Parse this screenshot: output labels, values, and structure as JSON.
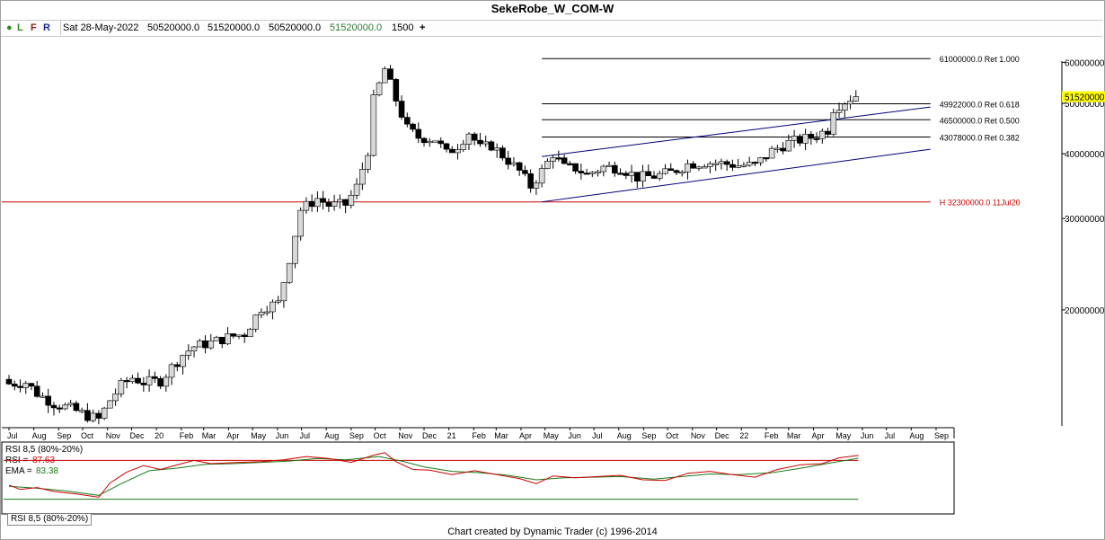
{
  "title": "SekeRobe_W_COM-W",
  "toolbar": {
    "dot": "●",
    "l": "L",
    "f": "F",
    "r": "R",
    "date": "Sat 28-May-2022",
    "open": "50520000.0",
    "high": "51520000.0",
    "low": "50520000.0",
    "close": "51520000.0",
    "volume": "1500",
    "plus": "+"
  },
  "colors": {
    "dot": "#2e8b22",
    "l": "#2e8b22",
    "f": "#8b1a1a",
    "r": "#1a2a8b",
    "close": "#2e7d32",
    "price_highlight": "#ffff00",
    "support_line": "#cc0000",
    "channel": "#00007a",
    "rsi_line": "#cc0000",
    "ema_line": "#1a7a1a"
  },
  "chart_data": [
    {
      "type": "candlestick",
      "title": "SekeRobe_W_COM-W",
      "y_scale": "log",
      "ylim": [
        12000000,
        68000000
      ],
      "y_ticks": [
        {
          "value": 60000000,
          "label": "60000000."
        },
        {
          "value": 50000000,
          "label": "50000000."
        },
        {
          "value": 40000000,
          "label": "40000000."
        },
        {
          "value": 30000000,
          "label": "30000000."
        },
        {
          "value": 20000000,
          "label": "20000000."
        }
      ],
      "x_ticks": [
        {
          "label": "Jul",
          "date": "2020-07-01"
        },
        {
          "label": "Aug",
          "date": "2020-08-01"
        },
        {
          "label": "Sep",
          "date": "2020-09-01"
        },
        {
          "label": "Oct",
          "date": "2020-10-01"
        },
        {
          "label": "Nov",
          "date": "2020-11-01"
        },
        {
          "label": "Dec",
          "date": "2020-12-01"
        },
        {
          "label": "20",
          "date": "2021-01-01"
        },
        {
          "label": "Feb",
          "date": "2021-02-01"
        },
        {
          "label": "Mar",
          "date": "2021-03-01"
        },
        {
          "label": "Apr",
          "date": "2021-04-01"
        },
        {
          "label": "May",
          "date": "2021-05-01"
        },
        {
          "label": "Jun",
          "date": "2021-06-01"
        },
        {
          "label": "Jul",
          "date": "2021-07-01"
        },
        {
          "label": "Aug",
          "date": "2021-08-01"
        },
        {
          "label": "Sep",
          "date": "2021-09-01"
        },
        {
          "label": "Oct",
          "date": "2021-10-01"
        },
        {
          "label": "Nov",
          "date": "2021-11-01"
        },
        {
          "label": "Dec",
          "date": "2021-12-01"
        },
        {
          "label": "21",
          "date": "2022-01-01"
        },
        {
          "label": "Feb",
          "date": "2022-02-01"
        },
        {
          "label": "Mar",
          "date": "2022-03-01"
        },
        {
          "label": "Apr",
          "date": "2022-04-01"
        },
        {
          "label": "May",
          "date": "2022-05-01"
        },
        {
          "label": "Jun",
          "date": "2022-06-01"
        },
        {
          "label": "Jul",
          "date": "2022-07-01"
        },
        {
          "label": "Aug",
          "date": "2022-08-01"
        },
        {
          "label": "Sep",
          "date": "2022-09-01"
        },
        {
          "label": "Oct",
          "date": "2022-10-01"
        },
        {
          "label": "Nov",
          "date": "2022-11-01"
        },
        {
          "label": "Dec",
          "date": "2022-12-01"
        },
        {
          "label": "22",
          "date": "2023-01-01"
        },
        {
          "label": "Feb",
          "date": "2023-02-01"
        },
        {
          "label": "Mar",
          "date": "2023-03-01"
        },
        {
          "label": "Apr",
          "date": "2023-04-01"
        },
        {
          "label": "May",
          "date": "2023-05-01"
        },
        {
          "label": "Jun",
          "date": "2023-06-01"
        },
        {
          "label": "Jul",
          "date": "2023-07-01"
        },
        {
          "label": "Aug",
          "date": "2023-08-01"
        },
        {
          "label": "Sep",
          "date": "2023-09-01"
        }
      ],
      "price_path": [
        [
          "2020-07-01",
          14700000
        ],
        [
          "2020-07-08",
          14400000
        ],
        [
          "2020-07-29",
          14500000
        ],
        [
          "2020-08-12",
          13800000
        ],
        [
          "2020-09-02",
          13200000
        ],
        [
          "2020-09-23",
          12900000
        ],
        [
          "2020-10-14",
          12500000
        ],
        [
          "2020-10-28",
          12300000
        ],
        [
          "2020-11-11",
          13400000
        ],
        [
          "2020-11-25",
          14300000
        ],
        [
          "2020-12-09",
          14800000
        ],
        [
          "2020-12-23",
          14500000
        ],
        [
          "2021-01-13",
          14600000
        ],
        [
          "2021-01-27",
          15500000
        ],
        [
          "2021-02-10",
          16400000
        ],
        [
          "2021-02-24",
          17000000
        ],
        [
          "2021-03-17",
          17300000
        ],
        [
          "2021-04-07",
          17700000
        ],
        [
          "2021-04-28",
          18000000
        ],
        [
          "2021-05-19",
          20200000
        ],
        [
          "2021-06-09",
          20600000
        ],
        [
          "2021-06-23",
          25100000
        ],
        [
          "2021-06-30",
          28000000
        ],
        [
          "2021-07-07",
          31200000
        ],
        [
          "2021-07-28",
          32800000
        ],
        [
          "2021-08-11",
          31800000
        ],
        [
          "2021-09-01",
          31900000
        ],
        [
          "2021-09-15",
          34500000
        ],
        [
          "2021-09-29",
          40600000
        ],
        [
          "2021-10-06",
          50700000
        ],
        [
          "2021-10-20",
          58200000
        ],
        [
          "2021-11-03",
          50800000
        ],
        [
          "2021-11-17",
          44700000
        ],
        [
          "2021-12-01",
          43000000
        ],
        [
          "2021-12-22",
          42700000
        ],
        [
          "2022-01-05",
          40000000
        ],
        [
          "2022-01-19",
          41500000
        ],
        [
          "2022-02-02",
          44000000
        ],
        [
          "2022-02-16",
          41000000
        ],
        [
          "2022-03-02",
          41500000
        ],
        [
          "2022-03-23",
          38800000
        ],
        [
          "2022-04-06",
          37000000
        ],
        [
          "2022-04-20",
          34600000
        ],
        [
          "2022-05-04",
          37000000
        ],
        [
          "2022-05-18",
          40000000
        ],
        [
          "2022-06-01",
          37600000
        ],
        [
          "2022-06-15",
          37500000
        ],
        [
          "2022-06-29",
          36500000
        ],
        [
          "2022-07-20",
          37700000
        ],
        [
          "2022-08-10",
          37600000
        ],
        [
          "2022-08-31",
          36000000
        ],
        [
          "2022-09-21",
          36200000
        ],
        [
          "2022-10-12",
          36800000
        ],
        [
          "2022-11-02",
          38200000
        ],
        [
          "2022-11-23",
          38500000
        ],
        [
          "2022-12-14",
          38300000
        ],
        [
          "2023-01-04",
          38000000
        ],
        [
          "2023-01-25",
          38000000
        ],
        [
          "2023-02-15",
          40500000
        ],
        [
          "2023-03-08",
          42000000
        ],
        [
          "2023-04-05",
          43000000
        ],
        [
          "2023-04-26",
          44500000
        ],
        [
          "2023-05-03",
          49000000
        ],
        [
          "2023-05-17",
          50500000
        ],
        [
          "2023-05-27",
          51520000
        ]
      ],
      "horizontal_levels": [
        {
          "price": 61000000,
          "label": "61000000.0 Ret 1.000",
          "from": "2022-04-27",
          "to": "2023-08-25"
        },
        {
          "price": 49922000,
          "label": "49922000.0 Ret 0.618",
          "from": "2022-04-27",
          "to": "2023-08-25"
        },
        {
          "price": 46500000,
          "label": "46500000.0 Ret 0.500",
          "from": "2022-04-27",
          "to": "2023-08-25"
        },
        {
          "price": 43078000,
          "label": "43078000.0 Ret 0.382",
          "from": "2022-04-27",
          "to": "2023-08-25"
        },
        {
          "price": 32300000,
          "label": "H 32300000.0 11Jul20",
          "from": "2020-07-01",
          "to": "2023-08-25"
        }
      ],
      "trend_lines": [
        {
          "from": [
            "2022-04-27",
            32300000
          ],
          "to": [
            "2023-08-25",
            40800000
          ]
        },
        {
          "from": [
            "2022-04-27",
            39500000
          ],
          "to": [
            "2023-08-25",
            49200000
          ]
        }
      ],
      "last_price_label": "51520000."
    },
    {
      "type": "line",
      "title": "RSI 8,5 (80%-20%)",
      "ylim": [
        0,
        100
      ],
      "levels": [
        80,
        20
      ],
      "readouts": [
        {
          "label": "RSI =",
          "value": "87.63"
        },
        {
          "label": "EMA =",
          "value": "83.38"
        }
      ],
      "rsi_path": [
        [
          "2020-07-01",
          42
        ],
        [
          "2020-07-15",
          35
        ],
        [
          "2020-08-05",
          38
        ],
        [
          "2020-08-26",
          32
        ],
        [
          "2020-09-23",
          28
        ],
        [
          "2020-10-21",
          23
        ],
        [
          "2020-11-04",
          45
        ],
        [
          "2020-11-25",
          62
        ],
        [
          "2020-12-16",
          72
        ],
        [
          "2021-01-06",
          66
        ],
        [
          "2021-01-27",
          73
        ],
        [
          "2021-02-17",
          80
        ],
        [
          "2021-03-10",
          75
        ],
        [
          "2021-04-14",
          77
        ],
        [
          "2021-05-12",
          78
        ],
        [
          "2021-06-09",
          81
        ],
        [
          "2021-07-07",
          86
        ],
        [
          "2021-08-04",
          83
        ],
        [
          "2021-09-01",
          77
        ],
        [
          "2021-09-29",
          88
        ],
        [
          "2021-10-13",
          92
        ],
        [
          "2021-10-27",
          78
        ],
        [
          "2021-11-17",
          66
        ],
        [
          "2021-12-08",
          65
        ],
        [
          "2022-01-05",
          58
        ],
        [
          "2022-02-02",
          64
        ],
        [
          "2022-03-02",
          58
        ],
        [
          "2022-03-30",
          52
        ],
        [
          "2022-04-20",
          44
        ],
        [
          "2022-05-11",
          56
        ],
        [
          "2022-06-08",
          53
        ],
        [
          "2022-07-06",
          55
        ],
        [
          "2022-08-03",
          57
        ],
        [
          "2022-08-31",
          50
        ],
        [
          "2022-09-28",
          49
        ],
        [
          "2022-10-26",
          60
        ],
        [
          "2022-11-23",
          63
        ],
        [
          "2022-12-21",
          58
        ],
        [
          "2023-01-18",
          54
        ],
        [
          "2023-02-15",
          66
        ],
        [
          "2023-03-15",
          73
        ],
        [
          "2023-04-12",
          75
        ],
        [
          "2023-05-03",
          84
        ],
        [
          "2023-05-27",
          87.63
        ]
      ],
      "ema_path": [
        [
          "2020-07-01",
          40
        ],
        [
          "2020-08-05",
          37
        ],
        [
          "2020-09-09",
          33
        ],
        [
          "2020-10-21",
          26
        ],
        [
          "2020-11-18",
          44
        ],
        [
          "2020-12-23",
          64
        ],
        [
          "2021-01-27",
          68
        ],
        [
          "2021-03-03",
          74
        ],
        [
          "2021-04-07",
          75
        ],
        [
          "2021-05-12",
          77
        ],
        [
          "2021-06-16",
          79
        ],
        [
          "2021-07-21",
          83
        ],
        [
          "2021-08-25",
          81
        ],
        [
          "2021-10-06",
          86
        ],
        [
          "2021-11-03",
          79
        ],
        [
          "2021-12-01",
          70
        ],
        [
          "2022-01-05",
          63
        ],
        [
          "2022-02-09",
          61
        ],
        [
          "2022-03-16",
          57
        ],
        [
          "2022-04-20",
          50
        ],
        [
          "2022-05-25",
          53
        ],
        [
          "2022-06-29",
          54
        ],
        [
          "2022-08-03",
          55
        ],
        [
          "2022-09-14",
          51
        ],
        [
          "2022-10-19",
          55
        ],
        [
          "2022-11-23",
          59
        ],
        [
          "2022-12-28",
          58
        ],
        [
          "2023-02-08",
          61
        ],
        [
          "2023-03-22",
          69
        ],
        [
          "2023-04-26",
          77
        ],
        [
          "2023-05-27",
          83.38
        ]
      ]
    }
  ],
  "rsi_tab": "RSI 8,5 (80%-20%)",
  "footer": "Chart created by Dynamic Trader  (c) 1996-2014"
}
